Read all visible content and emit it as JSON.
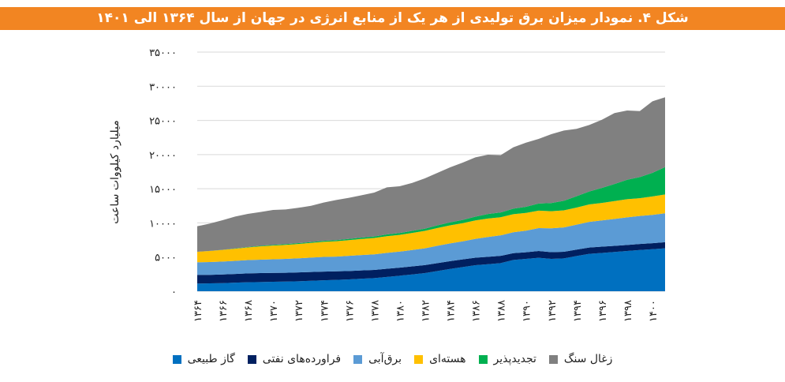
{
  "title": "شکل ۴. نمودار میزان برق تولیدی از هر یک از منابع انرژی در جهان از سال ۱۳۶۴ الی ۱۴۰۱",
  "header_color": "#F28522",
  "chart_data": {
    "type": "area",
    "stacked": true,
    "title": "",
    "xlabel": "",
    "ylabel": "میلیارد کیلووات ساعت",
    "ylim": [
      0,
      35000
    ],
    "grid": true,
    "legend_position": "bottom",
    "yticks": [
      0,
      5000,
      10000,
      15000,
      20000,
      25000,
      30000,
      35000
    ],
    "ytick_labels": [
      "۰",
      "۵۰۰۰",
      "۱۰۰۰۰",
      "۱۵۰۰۰",
      "۲۰۰۰۰",
      "۲۵۰۰۰",
      "۳۰۰۰۰",
      "۳۵۰۰۰"
    ],
    "x": [
      1364,
      1365,
      1366,
      1367,
      1368,
      1369,
      1370,
      1371,
      1372,
      1373,
      1374,
      1375,
      1376,
      1377,
      1378,
      1379,
      1380,
      1381,
      1382,
      1383,
      1384,
      1385,
      1386,
      1387,
      1388,
      1389,
      1390,
      1391,
      1392,
      1393,
      1394,
      1395,
      1396,
      1397,
      1398,
      1399,
      1400,
      1401
    ],
    "xtick_labels": [
      "۱۳۶۴",
      "۱۳۶۶",
      "۱۳۶۸",
      "۱۳۷۰",
      "۱۳۷۲",
      "۱۳۷۴",
      "۱۳۷۶",
      "۱۳۷۸",
      "۱۳۸۰",
      "۱۳۸۲",
      "۱۳۸۴",
      "۱۳۸۶",
      "۱۳۸۸",
      "۱۳۹۰",
      "۱۳۹۲",
      "۱۳۹۴",
      "۱۳۹۶",
      "۱۳۹۸",
      "۱۴۰۰"
    ],
    "series": [
      {
        "name": "گاز طبیعی",
        "color": "#0070C0",
        "values": [
          1120,
          1150,
          1190,
          1250,
          1310,
          1340,
          1380,
          1420,
          1460,
          1530,
          1600,
          1660,
          1730,
          1830,
          1925,
          2100,
          2270,
          2460,
          2660,
          2960,
          3270,
          3540,
          3810,
          3960,
          4120,
          4580,
          4730,
          4890,
          4735,
          4810,
          5150,
          5470,
          5600,
          5740,
          5890,
          6040,
          6150,
          6280
        ]
      },
      {
        "name": "فراورده‌های نفتی",
        "color": "#002060",
        "values": [
          1270,
          1250,
          1260,
          1270,
          1300,
          1320,
          1310,
          1280,
          1300,
          1290,
          1280,
          1250,
          1230,
          1220,
          1200,
          1190,
          1180,
          1180,
          1170,
          1150,
          1130,
          1120,
          1100,
          1080,
          1060,
          1000,
          980,
          1000,
          980,
          970,
          950,
          930,
          920,
          900,
          880,
          870,
          880,
          900
        ]
      },
      {
        "name": "برق‌آبی",
        "color": "#5B9BD5",
        "values": [
          1850,
          1870,
          1900,
          1920,
          1950,
          1960,
          1990,
          2030,
          2060,
          2100,
          2150,
          2160,
          2220,
          2250,
          2270,
          2320,
          2350,
          2400,
          2450,
          2550,
          2600,
          2650,
          2750,
          2900,
          3000,
          3050,
          3150,
          3350,
          3500,
          3560,
          3650,
          3750,
          3850,
          3950,
          4050,
          4100,
          4150,
          4230
        ]
      },
      {
        "name": "هسته‌ای",
        "color": "#FFC000",
        "values": [
          1540,
          1620,
          1700,
          1780,
          1850,
          1950,
          2000,
          2060,
          2100,
          2150,
          2200,
          2250,
          2300,
          2350,
          2400,
          2450,
          2450,
          2500,
          2550,
          2600,
          2650,
          2650,
          2700,
          2700,
          2650,
          2650,
          2600,
          2550,
          2500,
          2500,
          2500,
          2550,
          2550,
          2600,
          2650,
          2600,
          2700,
          2750
        ]
      },
      {
        "name": "تجدیدپذیر",
        "color": "#00B050",
        "values": [
          0,
          10,
          20,
          40,
          60,
          80,
          100,
          110,
          120,
          130,
          150,
          160,
          180,
          200,
          220,
          250,
          270,
          290,
          320,
          380,
          430,
          480,
          550,
          660,
          700,
          800,
          900,
          1050,
          1200,
          1400,
          1650,
          1900,
          2200,
          2500,
          2850,
          3100,
          3450,
          4000
        ]
      },
      {
        "name": "زغال سنگ",
        "color": "#808080",
        "values": [
          3730,
          4000,
          4330,
          4670,
          4850,
          4940,
          5120,
          5070,
          5170,
          5310,
          5600,
          5880,
          6010,
          6200,
          6420,
          6900,
          6840,
          7030,
          7370,
          7690,
          8050,
          8390,
          8690,
          8680,
          8380,
          8980,
          9390,
          9450,
          10070,
          10280,
          9860,
          9730,
          9980,
          10380,
          10130,
          9660,
          10470,
          10220
        ]
      }
    ]
  }
}
